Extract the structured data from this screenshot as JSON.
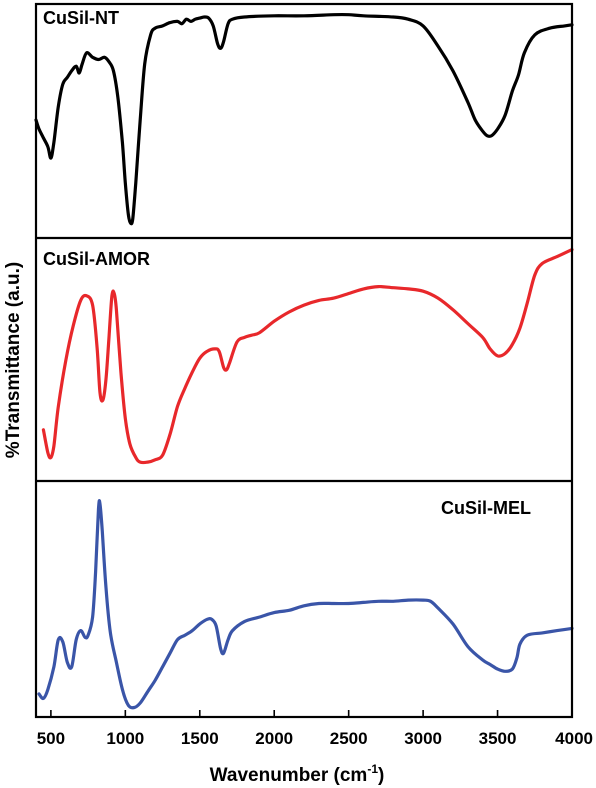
{
  "chart_data": {
    "type": "line",
    "xlabel_main": "Wavenumber (cm",
    "xlabel_sup": "-1",
    "xlabel_tail": ")",
    "ylabel": "%Transmittance (a.u.)",
    "xlim": [
      400,
      4000
    ],
    "xticks": [
      500,
      1000,
      1500,
      2000,
      2500,
      3000,
      3500,
      4000
    ],
    "xtick_labels": [
      "500",
      "1000",
      "1500",
      "2000",
      "2500",
      "3000",
      "3500",
      "4000"
    ],
    "series": [
      {
        "name": "CuSil-NT",
        "color": "#000000",
        "points": [
          [
            400,
            0.5
          ],
          [
            420,
            0.46
          ],
          [
            450,
            0.42
          ],
          [
            480,
            0.38
          ],
          [
            500,
            0.33
          ],
          [
            520,
            0.4
          ],
          [
            550,
            0.56
          ],
          [
            580,
            0.66
          ],
          [
            610,
            0.69
          ],
          [
            640,
            0.72
          ],
          [
            670,
            0.74
          ],
          [
            690,
            0.71
          ],
          [
            710,
            0.75
          ],
          [
            740,
            0.8
          ],
          [
            780,
            0.78
          ],
          [
            820,
            0.77
          ],
          [
            860,
            0.78
          ],
          [
            890,
            0.76
          ],
          [
            920,
            0.72
          ],
          [
            950,
            0.6
          ],
          [
            980,
            0.4
          ],
          [
            1000,
            0.22
          ],
          [
            1020,
            0.08
          ],
          [
            1035,
            0.04
          ],
          [
            1050,
            0.06
          ],
          [
            1070,
            0.22
          ],
          [
            1100,
            0.5
          ],
          [
            1130,
            0.75
          ],
          [
            1170,
            0.88
          ],
          [
            1200,
            0.91
          ],
          [
            1250,
            0.92
          ],
          [
            1300,
            0.935
          ],
          [
            1350,
            0.94
          ],
          [
            1380,
            0.93
          ],
          [
            1410,
            0.95
          ],
          [
            1440,
            0.94
          ],
          [
            1470,
            0.95
          ],
          [
            1500,
            0.955
          ],
          [
            1530,
            0.96
          ],
          [
            1560,
            0.955
          ],
          [
            1590,
            0.92
          ],
          [
            1620,
            0.84
          ],
          [
            1640,
            0.82
          ],
          [
            1660,
            0.85
          ],
          [
            1690,
            0.93
          ],
          [
            1720,
            0.95
          ],
          [
            1800,
            0.96
          ],
          [
            2000,
            0.965
          ],
          [
            2200,
            0.965
          ],
          [
            2400,
            0.97
          ],
          [
            2500,
            0.97
          ],
          [
            2600,
            0.965
          ],
          [
            2800,
            0.96
          ],
          [
            2900,
            0.95
          ],
          [
            3000,
            0.92
          ],
          [
            3100,
            0.83
          ],
          [
            3200,
            0.72
          ],
          [
            3300,
            0.58
          ],
          [
            3350,
            0.5
          ],
          [
            3400,
            0.45
          ],
          [
            3430,
            0.43
          ],
          [
            3460,
            0.43
          ],
          [
            3500,
            0.46
          ],
          [
            3550,
            0.52
          ],
          [
            3600,
            0.63
          ],
          [
            3640,
            0.7
          ],
          [
            3680,
            0.8
          ],
          [
            3750,
            0.88
          ],
          [
            3850,
            0.91
          ],
          [
            3950,
            0.92
          ],
          [
            4000,
            0.925
          ]
        ]
      },
      {
        "name": "CuSil-AMOR",
        "color": "#e8282b",
        "points": [
          [
            450,
            0.2
          ],
          [
            480,
            0.1
          ],
          [
            500,
            0.08
          ],
          [
            520,
            0.13
          ],
          [
            550,
            0.3
          ],
          [
            600,
            0.5
          ],
          [
            650,
            0.65
          ],
          [
            700,
            0.76
          ],
          [
            740,
            0.78
          ],
          [
            780,
            0.74
          ],
          [
            810,
            0.56
          ],
          [
            830,
            0.36
          ],
          [
            850,
            0.33
          ],
          [
            870,
            0.42
          ],
          [
            890,
            0.6
          ],
          [
            910,
            0.78
          ],
          [
            925,
            0.79
          ],
          [
            940,
            0.72
          ],
          [
            970,
            0.45
          ],
          [
            1000,
            0.25
          ],
          [
            1030,
            0.14
          ],
          [
            1070,
            0.08
          ],
          [
            1100,
            0.06
          ],
          [
            1150,
            0.06
          ],
          [
            1200,
            0.07
          ],
          [
            1250,
            0.09
          ],
          [
            1300,
            0.18
          ],
          [
            1350,
            0.3
          ],
          [
            1400,
            0.38
          ],
          [
            1450,
            0.45
          ],
          [
            1500,
            0.51
          ],
          [
            1550,
            0.54
          ],
          [
            1600,
            0.55
          ],
          [
            1630,
            0.54
          ],
          [
            1660,
            0.47
          ],
          [
            1680,
            0.46
          ],
          [
            1700,
            0.49
          ],
          [
            1750,
            0.58
          ],
          [
            1800,
            0.6
          ],
          [
            1850,
            0.61
          ],
          [
            1900,
            0.62
          ],
          [
            2000,
            0.67
          ],
          [
            2100,
            0.71
          ],
          [
            2200,
            0.74
          ],
          [
            2300,
            0.76
          ],
          [
            2400,
            0.77
          ],
          [
            2500,
            0.79
          ],
          [
            2600,
            0.81
          ],
          [
            2700,
            0.82
          ],
          [
            2800,
            0.815
          ],
          [
            2900,
            0.81
          ],
          [
            3000,
            0.8
          ],
          [
            3100,
            0.77
          ],
          [
            3200,
            0.72
          ],
          [
            3300,
            0.66
          ],
          [
            3400,
            0.6
          ],
          [
            3450,
            0.55
          ],
          [
            3500,
            0.52
          ],
          [
            3550,
            0.53
          ],
          [
            3600,
            0.57
          ],
          [
            3650,
            0.64
          ],
          [
            3700,
            0.75
          ],
          [
            3750,
            0.87
          ],
          [
            3800,
            0.92
          ],
          [
            3900,
            0.95
          ],
          [
            4000,
            0.98
          ]
        ]
      },
      {
        "name": "CuSil-MEL",
        "color": "#3a55a8",
        "points": [
          [
            420,
            0.08
          ],
          [
            450,
            0.06
          ],
          [
            480,
            0.1
          ],
          [
            520,
            0.2
          ],
          [
            550,
            0.32
          ],
          [
            580,
            0.31
          ],
          [
            610,
            0.22
          ],
          [
            640,
            0.2
          ],
          [
            670,
            0.32
          ],
          [
            700,
            0.36
          ],
          [
            730,
            0.33
          ],
          [
            750,
            0.34
          ],
          [
            780,
            0.42
          ],
          [
            800,
            0.62
          ],
          [
            820,
            0.9
          ],
          [
            830,
            0.92
          ],
          [
            845,
            0.8
          ],
          [
            870,
            0.55
          ],
          [
            900,
            0.35
          ],
          [
            940,
            0.22
          ],
          [
            980,
            0.1
          ],
          [
            1020,
            0.03
          ],
          [
            1060,
            0.02
          ],
          [
            1100,
            0.04
          ],
          [
            1150,
            0.09
          ],
          [
            1200,
            0.14
          ],
          [
            1250,
            0.2
          ],
          [
            1300,
            0.26
          ],
          [
            1350,
            0.32
          ],
          [
            1400,
            0.34
          ],
          [
            1450,
            0.36
          ],
          [
            1500,
            0.39
          ],
          [
            1550,
            0.41
          ],
          [
            1580,
            0.41
          ],
          [
            1610,
            0.38
          ],
          [
            1640,
            0.28
          ],
          [
            1660,
            0.26
          ],
          [
            1690,
            0.32
          ],
          [
            1720,
            0.36
          ],
          [
            1800,
            0.4
          ],
          [
            1900,
            0.42
          ],
          [
            2000,
            0.44
          ],
          [
            2100,
            0.45
          ],
          [
            2200,
            0.47
          ],
          [
            2300,
            0.48
          ],
          [
            2400,
            0.48
          ],
          [
            2500,
            0.48
          ],
          [
            2600,
            0.485
          ],
          [
            2700,
            0.49
          ],
          [
            2800,
            0.49
          ],
          [
            2900,
            0.495
          ],
          [
            3000,
            0.495
          ],
          [
            3050,
            0.49
          ],
          [
            3100,
            0.46
          ],
          [
            3200,
            0.39
          ],
          [
            3300,
            0.29
          ],
          [
            3400,
            0.23
          ],
          [
            3450,
            0.21
          ],
          [
            3500,
            0.19
          ],
          [
            3550,
            0.18
          ],
          [
            3600,
            0.19
          ],
          [
            3630,
            0.24
          ],
          [
            3650,
            0.3
          ],
          [
            3700,
            0.34
          ],
          [
            3800,
            0.35
          ],
          [
            3900,
            0.36
          ],
          [
            4000,
            0.37
          ]
        ]
      }
    ]
  }
}
